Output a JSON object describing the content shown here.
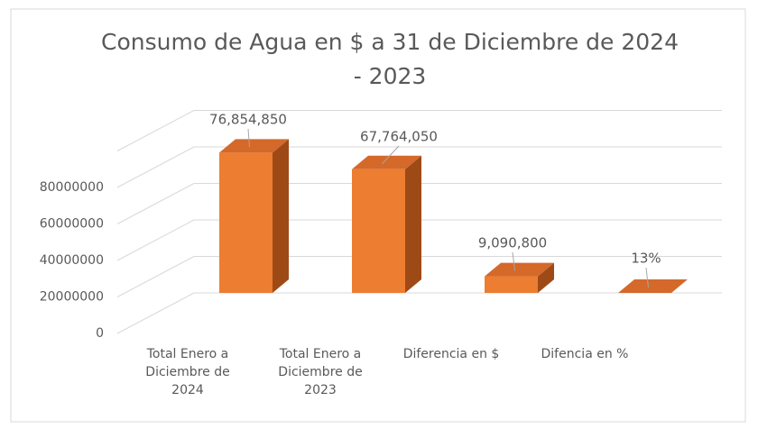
{
  "chart_data": {
    "type": "bar3d",
    "title": "Consumo de Agua en $ a 31 de Diciembre de 2024 - 2023",
    "categories": [
      "Total Enero a Diciembre de 2024",
      "Total Enero a Diciembre de 2023",
      "Diferencia en $",
      "Difencia en %"
    ],
    "values": [
      76854850,
      67764050,
      9090800,
      13
    ],
    "value_labels": [
      "76,854,850",
      "67,764,050",
      "9,090,800",
      "13%"
    ],
    "color": "#ed7d31",
    "ylim": [
      0,
      100000000
    ],
    "yticks": [
      0,
      20000000,
      40000000,
      60000000,
      80000000
    ],
    "grid": true
  }
}
